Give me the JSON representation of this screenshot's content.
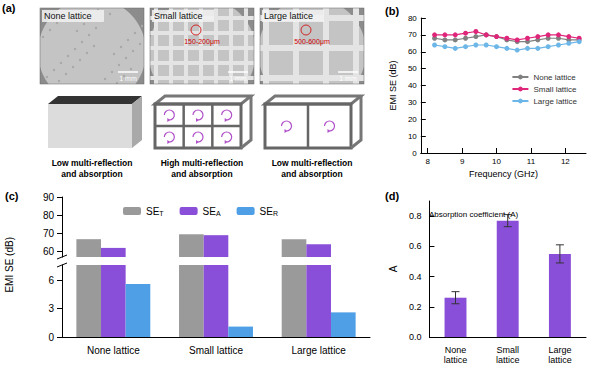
{
  "panel_a": {
    "label": "(a)",
    "images": [
      {
        "title": "None lattice",
        "scale_bar": "1 mm"
      },
      {
        "title": "Small lattice",
        "size": "150-200μm",
        "scale_bar": "1 mm"
      },
      {
        "title": "Large lattice",
        "size": "500-600μm",
        "scale_bar": "1 mm"
      }
    ],
    "captions": [
      "Low multi-reflection and absorption",
      "High multi-reflection and absorption",
      "Low multi-reflection and absorption"
    ]
  },
  "chart_data": [
    {
      "label": "(b)",
      "type": "line",
      "x_label": "Frequency (GHz)",
      "y_label": "EMI SE (dB)",
      "x": [
        8.2,
        8.5,
        8.8,
        9.1,
        9.4,
        9.7,
        10.0,
        10.3,
        10.6,
        10.9,
        11.2,
        11.5,
        11.8,
        12.1,
        12.4
      ],
      "series": [
        {
          "name": "None lattice",
          "color": "#808080",
          "values": [
            68,
            67,
            67,
            68,
            69,
            70,
            69,
            67,
            66,
            66,
            67,
            68,
            68,
            67,
            67
          ]
        },
        {
          "name": "Small lattice",
          "color": "#e0267a",
          "values": [
            70,
            70,
            70,
            71,
            72,
            70,
            69,
            68,
            67,
            68,
            69,
            70,
            70,
            69,
            68
          ]
        },
        {
          "name": "Large lattice",
          "color": "#6cb6e8",
          "values": [
            64,
            63,
            62,
            63,
            64,
            64,
            63,
            62,
            61,
            62,
            62,
            63,
            64,
            65,
            66
          ]
        }
      ],
      "xlim": [
        7.8,
        12.6
      ],
      "xticks": [
        8,
        9,
        10,
        11,
        12
      ],
      "ylim": [
        0,
        80
      ],
      "yticks": [
        0,
        10,
        20,
        30,
        40,
        50,
        60,
        70,
        80
      ],
      "marker": "circle",
      "line_style": "solid",
      "legend": "right",
      "grid": false
    },
    {
      "label": "(c)",
      "type": "bar",
      "y_label": "EMI SE (dB)",
      "categories": [
        "None lattice",
        "Small lattice",
        "Large lattice"
      ],
      "series": [
        {
          "name": "SET",
          "color": "#9a9a9a",
          "values": [
            66.8,
            69.5,
            66.8
          ]
        },
        {
          "name": "SEA",
          "color": "#8a4fd8",
          "values": [
            62,
            69,
            64
          ]
        },
        {
          "name": "SER",
          "color": "#4e9fe6",
          "values": [
            5.6,
            1.1,
            2.6
          ]
        }
      ],
      "ylim": [
        0,
        90
      ],
      "yticks": [
        0,
        3,
        6,
        60,
        70,
        80,
        90
      ],
      "axis_break": [
        7.6,
        57
      ],
      "legend": "top",
      "grid": false
    },
    {
      "label": "(d)",
      "type": "bar",
      "title": "Absorption coefficient (A)",
      "y_label": "A",
      "categories": [
        "None lattice",
        "Small lattice",
        "Large lattice"
      ],
      "values": [
        0.26,
        0.77,
        0.55
      ],
      "errors": [
        0.04,
        0.04,
        0.06
      ],
      "color": "#8a4fd8",
      "ylim": [
        0,
        0.9
      ],
      "yticks": [
        {
          "value": 0,
          "label": "0.0"
        },
        0.2,
        0.4,
        0.6,
        0.8
      ],
      "grid": false
    }
  ]
}
